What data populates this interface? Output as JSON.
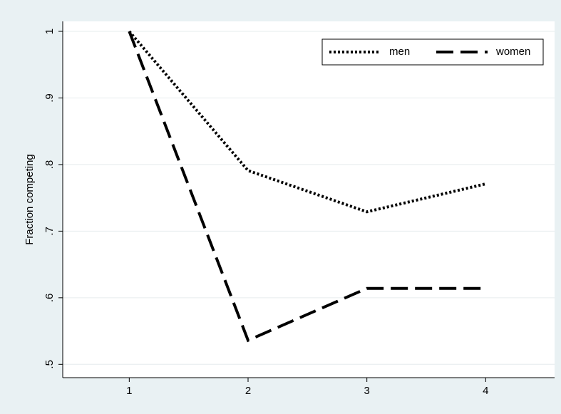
{
  "chart_data": {
    "type": "line",
    "ylabel": "Fraction competing",
    "x": [
      1,
      2,
      3,
      4
    ],
    "series": [
      {
        "name": "men",
        "color": "#000000",
        "dash": "dotted",
        "values": [
          1,
          0.791,
          0.729,
          0.771
        ]
      },
      {
        "name": "women",
        "color": "#000000",
        "dash": "dashed",
        "values": [
          1,
          0.536,
          0.614,
          0.614
        ]
      }
    ],
    "xlim": [
      0.44,
      4.58
    ],
    "xticks": [
      1,
      2,
      3,
      4
    ],
    "ylim": [
      0.48,
      1.015
    ],
    "yticks": [
      {
        "value": 0.5,
        "label": ".5"
      },
      {
        "value": 0.6,
        "label": ".6"
      },
      {
        "value": 0.7,
        "label": ".7"
      },
      {
        "value": 0.8,
        "label": ".8"
      },
      {
        "value": 0.9,
        "label": ".9"
      },
      1
    ],
    "grid": true,
    "legend": "top-right"
  }
}
